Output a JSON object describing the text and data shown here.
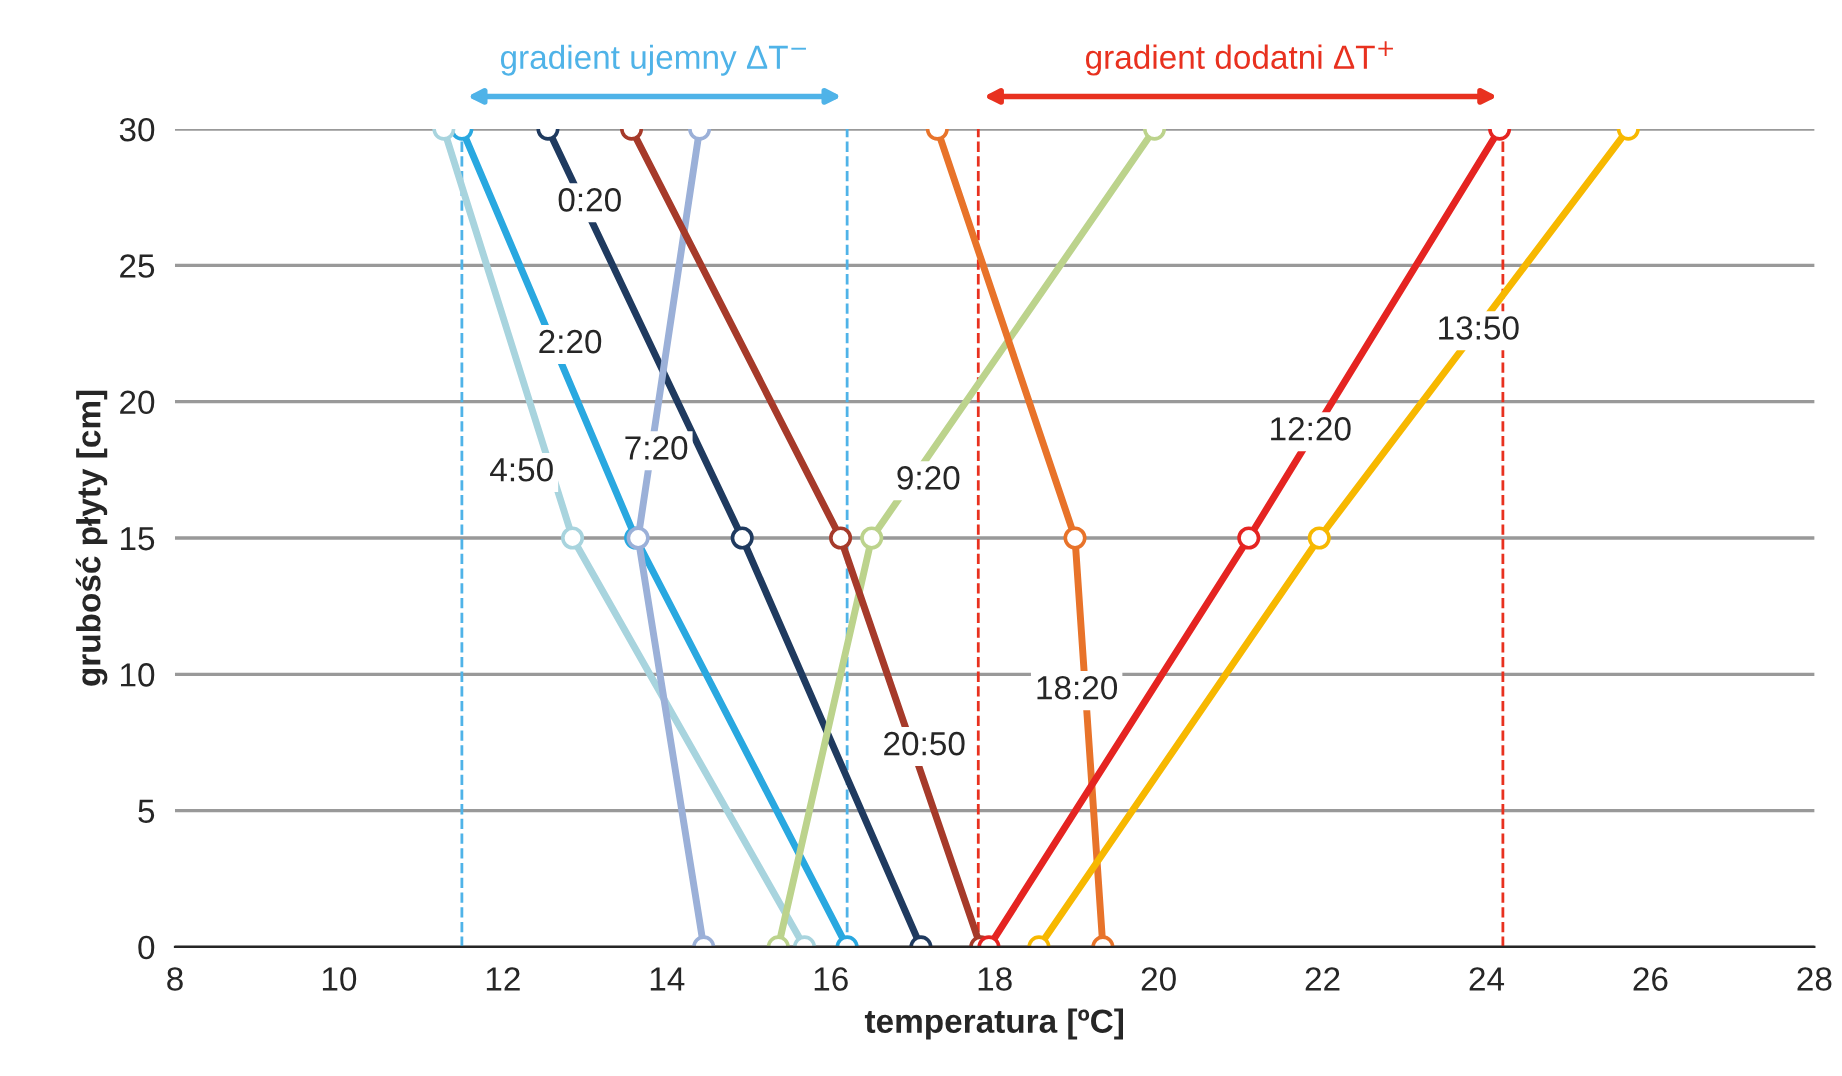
{
  "chart_data": {
    "type": "line",
    "xlabel": "temperatura [ºC]",
    "ylabel": "grubość płyty [cm]",
    "xlim": [
      8,
      28
    ],
    "xticks": [
      8,
      10,
      12,
      14,
      16,
      18,
      20,
      22,
      24,
      26,
      28
    ],
    "ylim": [
      0,
      30
    ],
    "yticks": [
      0,
      5,
      10,
      15,
      20,
      25,
      30
    ],
    "grid": "y",
    "marker": "circle",
    "line_style": "solid",
    "legend": false,
    "series": [
      {
        "color": "#1f3a5f",
        "x": [
          12.55,
          14.92,
          17.1
        ],
        "values": [
          30,
          15,
          0
        ]
      },
      {
        "color": "#29a8e0",
        "x": [
          11.5,
          13.62,
          16.2
        ],
        "values": [
          30,
          15,
          0
        ]
      },
      {
        "color": "#a8d4de",
        "x": [
          11.28,
          12.85,
          15.68
        ],
        "values": [
          30,
          15,
          0
        ]
      },
      {
        "color": "#9bb0d8",
        "x": [
          14.4,
          13.65,
          14.45
        ],
        "values": [
          30,
          15,
          0
        ]
      },
      {
        "color": "#bcd38c",
        "x": [
          19.95,
          16.5,
          15.36
        ],
        "values": [
          30,
          15,
          0
        ]
      },
      {
        "color": "#e8732a",
        "x": [
          17.3,
          18.98,
          19.32
        ],
        "values": [
          30,
          15,
          0
        ]
      },
      {
        "color": "#a63a2a",
        "x": [
          13.57,
          16.12,
          17.83
        ],
        "values": [
          30,
          15,
          0
        ]
      },
      {
        "color": "#e52421",
        "x": [
          24.16,
          21.1,
          17.93
        ],
        "values": [
          30,
          15,
          0
        ]
      },
      {
        "color": "#f7b800",
        "x": [
          25.73,
          21.96,
          18.54
        ],
        "values": [
          30,
          15,
          0
        ]
      }
    ],
    "ref_lines": [
      {
        "axis": "x",
        "value": 11.5,
        "color": "#4fb3e8",
        "line_style": "dashed"
      },
      {
        "axis": "x",
        "value": 16.2,
        "color": "#4fb3e8",
        "line_style": "dashed"
      },
      {
        "axis": "x",
        "value": 17.8,
        "color": "#e8311f",
        "line_style": "dashed"
      },
      {
        "axis": "x",
        "value": 24.2,
        "color": "#e8311f",
        "line_style": "dashed"
      }
    ],
    "annotations": [
      "gradient ujemny ΔT$^{−}$",
      "gradient dodatni ΔT$^{+}$",
      {
        "text": "0:20",
        "x": 13.06,
        "y": 27.3
      },
      {
        "text": "2:20",
        "x": 12.82,
        "y": 22.1
      },
      {
        "text": "4:50",
        "x": 12.23,
        "y": 17.4
      },
      {
        "text": "7:20",
        "x": 13.87,
        "y": 18.2
      },
      {
        "text": "9:20",
        "x": 17.19,
        "y": 17.1
      },
      {
        "text": "18:20",
        "x": 19.0,
        "y": 9.4
      },
      {
        "text": "20:50",
        "x": 17.14,
        "y": 7.35
      },
      {
        "text": "12:20",
        "x": 21.85,
        "y": 18.9
      },
      {
        "text": "13:50",
        "x": 23.9,
        "y": 22.6
      }
    ]
  }
}
